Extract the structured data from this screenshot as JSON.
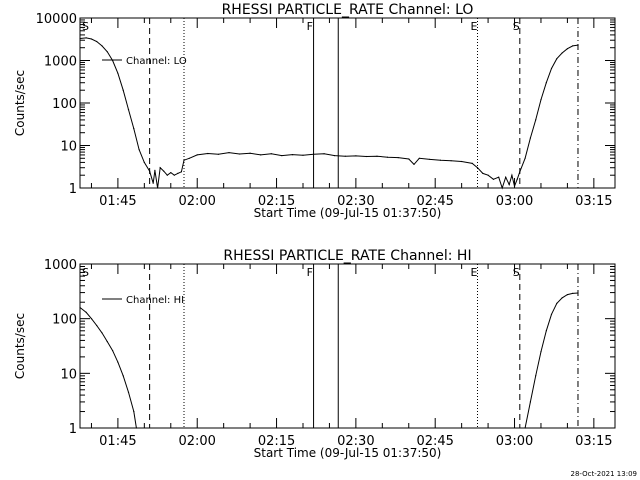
{
  "footer_timestamp": "28-Oct-2021 13:09",
  "chart_data": [
    {
      "type": "line",
      "title": "RHESSI PARTICLE_RATE Channel: LO",
      "xlabel": "Start Time (09-Jul-15 01:37:50)",
      "ylabel": "Counts/sec",
      "yscale": "log",
      "ylim": [
        1,
        10000
      ],
      "yticks": [
        "1",
        "10",
        "100",
        "1000",
        "10000"
      ],
      "xlim": [
        "01:37:50",
        "03:19:00"
      ],
      "xticks": [
        "01:45",
        "02:00",
        "02:15",
        "02:30",
        "02:45",
        "03:00",
        "03:15"
      ],
      "legend": "top-left",
      "series": [
        {
          "name": "Channel: LO",
          "points": [
            [
              "01:37:50",
              3300
            ],
            [
              "01:39:00",
              3400
            ],
            [
              "01:40:00",
              3200
            ],
            [
              "01:41:00",
              2800
            ],
            [
              "01:42:00",
              2200
            ],
            [
              "01:43:00",
              1600
            ],
            [
              "01:44:00",
              1000
            ],
            [
              "01:45:00",
              500
            ],
            [
              "01:46:00",
              200
            ],
            [
              "01:47:00",
              70
            ],
            [
              "01:48:00",
              25
            ],
            [
              "01:49:00",
              8
            ],
            [
              "01:50:00",
              4
            ],
            [
              "01:51:00",
              2.5
            ],
            [
              "01:51:40",
              1.3
            ],
            [
              "01:52:00",
              2.6
            ],
            [
              "01:52:30",
              1.0
            ],
            [
              "01:53:00",
              3.0
            ],
            [
              "01:53:40",
              2.5
            ],
            [
              "01:54:20",
              2.0
            ],
            [
              "01:55:00",
              2.3
            ],
            [
              "01:55:40",
              2.0
            ],
            [
              "01:56:20",
              2.2
            ],
            [
              "01:57:00",
              2.4
            ],
            [
              "01:57:30",
              4.5
            ],
            [
              "01:58:30",
              5
            ],
            [
              "02:00:00",
              6
            ],
            [
              "02:02:00",
              6.5
            ],
            [
              "02:04:00",
              6.2
            ],
            [
              "02:06:00",
              6.8
            ],
            [
              "02:08:00",
              6.3
            ],
            [
              "02:10:00",
              6.6
            ],
            [
              "02:12:00",
              6.0
            ],
            [
              "02:14:00",
              6.4
            ],
            [
              "02:16:00",
              5.8
            ],
            [
              "02:18:00",
              6.1
            ],
            [
              "02:20:00",
              5.9
            ],
            [
              "02:22:00",
              6.2
            ],
            [
              "02:24:00",
              6.4
            ],
            [
              "02:26:00",
              5.8
            ],
            [
              "02:28:00",
              5.6
            ],
            [
              "02:30:00",
              5.7
            ],
            [
              "02:32:00",
              5.5
            ],
            [
              "02:34:00",
              5.6
            ],
            [
              "02:36:00",
              5.3
            ],
            [
              "02:38:00",
              5.2
            ],
            [
              "02:40:00",
              4.8
            ],
            [
              "02:41:00",
              3.6
            ],
            [
              "02:42:00",
              5.0
            ],
            [
              "02:44:00",
              4.7
            ],
            [
              "02:46:00",
              4.5
            ],
            [
              "02:48:00",
              4.4
            ],
            [
              "02:50:00",
              4.2
            ],
            [
              "02:52:00",
              3.8
            ],
            [
              "02:53:00",
              3.0
            ],
            [
              "02:54:00",
              2.2
            ],
            [
              "02:55:00",
              2.0
            ],
            [
              "02:56:00",
              1.6
            ],
            [
              "02:57:00",
              1.8
            ],
            [
              "02:57:40",
              1.0
            ],
            [
              "02:58:20",
              1.8
            ],
            [
              "02:59:00",
              1.2
            ],
            [
              "02:59:30",
              2.0
            ],
            [
              "03:00:00",
              1.1
            ],
            [
              "03:00:30",
              1.6
            ],
            [
              "03:01:00",
              2.4
            ],
            [
              "03:02:00",
              5
            ],
            [
              "03:03:00",
              15
            ],
            [
              "03:04:00",
              40
            ],
            [
              "03:05:00",
              120
            ],
            [
              "03:06:00",
              300
            ],
            [
              "03:07:00",
              650
            ],
            [
              "03:08:00",
              1100
            ],
            [
              "03:09:00",
              1500
            ],
            [
              "03:10:00",
              1900
            ],
            [
              "03:11:00",
              2200
            ],
            [
              "03:12:00",
              2300
            ]
          ]
        }
      ],
      "markers": [
        {
          "label": "S",
          "time": "01:37:50",
          "style": "none"
        },
        {
          "label": "",
          "time": "01:51:00",
          "style": "dashed"
        },
        {
          "label": "",
          "time": "01:57:30",
          "style": "dotted"
        },
        {
          "label": "F",
          "time": "02:22:00",
          "style": "solid"
        },
        {
          "label": "",
          "time": "02:26:40",
          "style": "solid"
        },
        {
          "label": "E",
          "time": "02:53:00",
          "style": "dotted"
        },
        {
          "label": "S",
          "time": "03:01:00",
          "style": "dashed"
        },
        {
          "label": "",
          "time": "03:12:00",
          "style": "dashdot"
        }
      ]
    },
    {
      "type": "line",
      "title": "RHESSI PARTICLE_RATE Channel: HI",
      "xlabel": "Start Time (09-Jul-15 01:37:50)",
      "ylabel": "Counts/sec",
      "yscale": "log",
      "ylim": [
        1,
        1000
      ],
      "yticks": [
        "1",
        "10",
        "100",
        "1000"
      ],
      "xlim": [
        "01:37:50",
        "03:19:00"
      ],
      "xticks": [
        "01:45",
        "02:00",
        "02:15",
        "02:30",
        "02:45",
        "03:00",
        "03:15"
      ],
      "legend": "top-left",
      "series": [
        {
          "name": "Channel: HI",
          "points": [
            [
              "01:37:50",
              160
            ],
            [
              "01:39:00",
              130
            ],
            [
              "01:40:00",
              100
            ],
            [
              "01:41:00",
              75
            ],
            [
              "01:42:00",
              55
            ],
            [
              "01:43:00",
              38
            ],
            [
              "01:44:00",
              26
            ],
            [
              "01:45:00",
              16
            ],
            [
              "01:46:00",
              9
            ],
            [
              "01:47:00",
              4.5
            ],
            [
              "01:48:00",
              2
            ],
            [
              "01:48:30",
              1
            ]
          ]
        },
        {
          "name": "Channel: HI",
          "points": [
            [
              "03:02:00",
              1
            ],
            [
              "03:03:00",
              3
            ],
            [
              "03:04:00",
              9
            ],
            [
              "03:05:00",
              25
            ],
            [
              "03:06:00",
              60
            ],
            [
              "03:07:00",
              120
            ],
            [
              "03:08:00",
              190
            ],
            [
              "03:09:00",
              240
            ],
            [
              "03:10:00",
              275
            ],
            [
              "03:11:00",
              290
            ],
            [
              "03:12:00",
              295
            ]
          ]
        }
      ],
      "markers": [
        {
          "label": "S",
          "time": "01:37:50",
          "style": "none"
        },
        {
          "label": "",
          "time": "01:51:00",
          "style": "dashed"
        },
        {
          "label": "",
          "time": "01:57:30",
          "style": "dotted"
        },
        {
          "label": "F",
          "time": "02:22:00",
          "style": "solid"
        },
        {
          "label": "",
          "time": "02:26:40",
          "style": "solid"
        },
        {
          "label": "E",
          "time": "02:53:00",
          "style": "dotted"
        },
        {
          "label": "S",
          "time": "03:01:00",
          "style": "dashed"
        },
        {
          "label": "",
          "time": "03:12:00",
          "style": "dashdot"
        }
      ]
    }
  ]
}
